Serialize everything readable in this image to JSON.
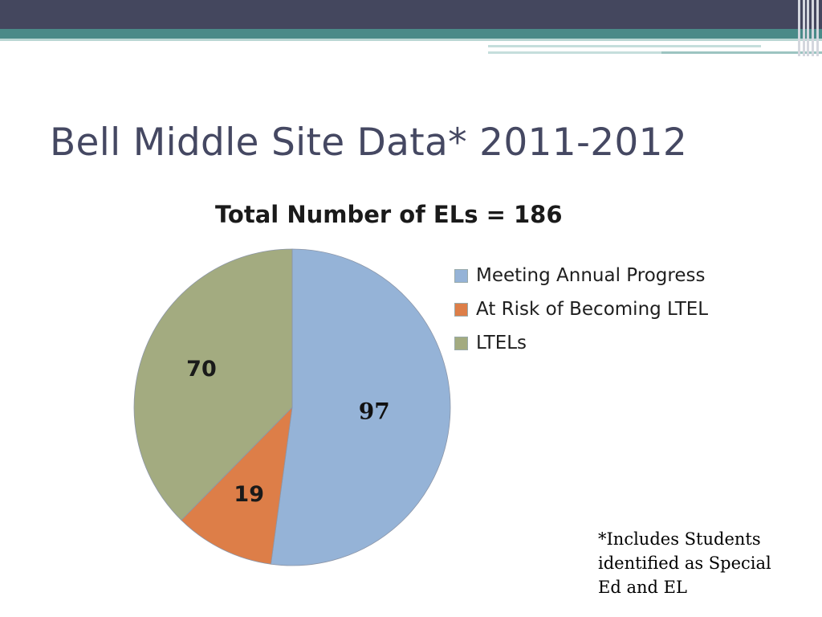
{
  "slide": {
    "title": "Bell Middle Site Data* 2011-2012",
    "footnote": "*Includes Students identified as Special Ed and EL"
  },
  "theme": {
    "header_band": "#44475e",
    "teal_band": "#4a8a88"
  },
  "chart_data": {
    "type": "pie",
    "title": "Total Number of ELs = 186",
    "legend_position": "right",
    "slices": [
      {
        "name": "Meeting Annual Progress",
        "value": 97,
        "label": "97",
        "color": "#95b3d7"
      },
      {
        "name": "At Risk of Becoming LTEL",
        "value": 19,
        "label": "19",
        "color": "#dd7e48"
      },
      {
        "name": "LTELs",
        "value": 70,
        "label": "70",
        "color": "#a3ab80"
      }
    ]
  }
}
